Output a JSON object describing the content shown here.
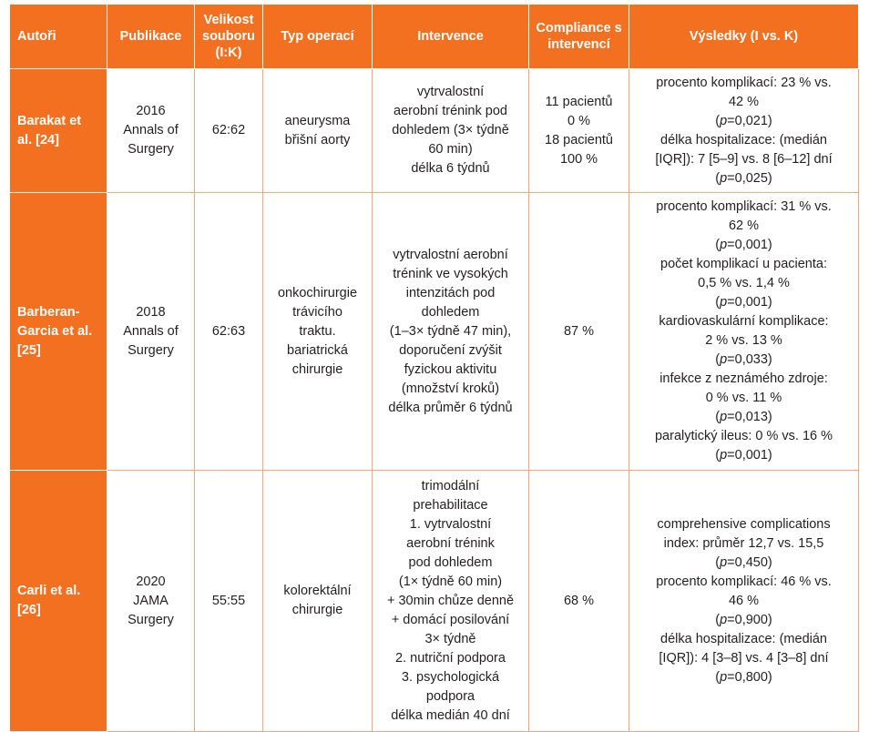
{
  "header": {
    "authors": "Autoři",
    "publication": "Publikace",
    "sample_size": "Velikost souboru (I:K)",
    "operation_type": "Typ operací",
    "intervention": "Intervence",
    "compliance": "Compliance s intervencí",
    "results": "Výsledky (I vs. K)"
  },
  "colors": {
    "accent": "#f37021",
    "border": "#f4a57a",
    "text": "#231f20"
  },
  "rows": [
    {
      "authors": [
        "Barakat et",
        "al. [24]"
      ],
      "publication": [
        "2016",
        "Annals of",
        "Surgery"
      ],
      "sample_size": "62:62",
      "operation_type": [
        "aneurysma",
        "břišní aorty"
      ],
      "intervention": [
        "vytrvalostní",
        "aerobní trénink pod",
        "dohledem (3× týdně",
        "60 min)",
        "délka 6 týdnů"
      ],
      "compliance": [
        "11 pacientů",
        "0 %",
        "18 pacientů",
        "100 %"
      ],
      "results": [
        {
          "pre": "procento komplikací: 23 % vs."
        },
        {
          "pre": "42 %"
        },
        {
          "pre": "(",
          "it": "p",
          "post": "=0,021)"
        },
        {
          "pre": "délka hospitalizace: (medián"
        },
        {
          "pre": "[IQR]): 7 [5–9] vs. 8 [6–12] dní"
        },
        {
          "pre": "(",
          "it": "p",
          "post": "=0,025)"
        }
      ]
    },
    {
      "authors": [
        "Barberan-",
        "Garcia et al.",
        "[25]"
      ],
      "publication": [
        "2018",
        "Annals of",
        "Surgery"
      ],
      "sample_size": "62:63",
      "operation_type": [
        "onkochirurgie",
        "trávicího",
        "traktu.",
        "bariatrická",
        "chirurgie"
      ],
      "intervention": [
        "vytrvalostní aerobní",
        "trénink ve vysokých",
        "intenzitách pod",
        "dohledem",
        "(1–3× týdně 47 min),",
        "doporučení zvýšit",
        "fyzickou aktivitu",
        "(množství kroků)",
        "délka průměr 6 týdnů"
      ],
      "compliance": [
        "87 %"
      ],
      "results": [
        {
          "pre": "procento komplikací: 31 % vs."
        },
        {
          "pre": "62 %"
        },
        {
          "pre": "(",
          "it": "p",
          "post": "=0,001)"
        },
        {
          "pre": "počet komplikací u pacienta:"
        },
        {
          "pre": "0,5 % vs. 1,4 %"
        },
        {
          "pre": "(",
          "it": "p",
          "post": "=0,001)"
        },
        {
          "pre": "kardiovaskulární komplikace:"
        },
        {
          "pre": "2 % vs. 13 %"
        },
        {
          "pre": "(",
          "it": "p",
          "post": "=0,033)"
        },
        {
          "pre": "infekce z neznámého zdroje:"
        },
        {
          "pre": "0 % vs. 11 %"
        },
        {
          "pre": "(",
          "it": "p",
          "post": "=0,013)"
        },
        {
          "pre": "paralytický ileus: 0 % vs. 16 %"
        },
        {
          "pre": "(",
          "it": "p",
          "post": "=0,001)"
        }
      ]
    },
    {
      "authors": [
        "Carli et al.",
        "[26]"
      ],
      "publication": [
        "2020",
        "JAMA",
        "Surgery"
      ],
      "sample_size": "55:55",
      "operation_type": [
        "kolorektální",
        "chirurgie"
      ],
      "intervention": [
        "trimodální",
        "prehabilitace",
        "1. vytrvalostní",
        "aerobní trénink",
        "pod dohledem",
        "(1× týdně 60 min)",
        "+ 30min chůze denně",
        "+ domácí posilování",
        "3× týdně",
        "2. nutriční podpora",
        "3. psychologická",
        "podpora",
        "délka medián 40 dní"
      ],
      "compliance": [
        "68 %"
      ],
      "results": [
        {
          "pre": "comprehensive complications"
        },
        {
          "pre": "index: průměr 12,7 vs. 15,5"
        },
        {
          "pre": "(",
          "it": "p",
          "post": "=0,450)"
        },
        {
          "pre": "procento komplikací: 46 % vs."
        },
        {
          "pre": "46 %"
        },
        {
          "pre": "(",
          "it": "p",
          "post": "=0,900)"
        },
        {
          "pre": "délka hospitalizace: (medián"
        },
        {
          "pre": "[IQR]): 4 [3–8] vs. 4 [3–8] dní"
        },
        {
          "pre": "(",
          "it": "p",
          "post": "=0,800)"
        }
      ]
    }
  ]
}
